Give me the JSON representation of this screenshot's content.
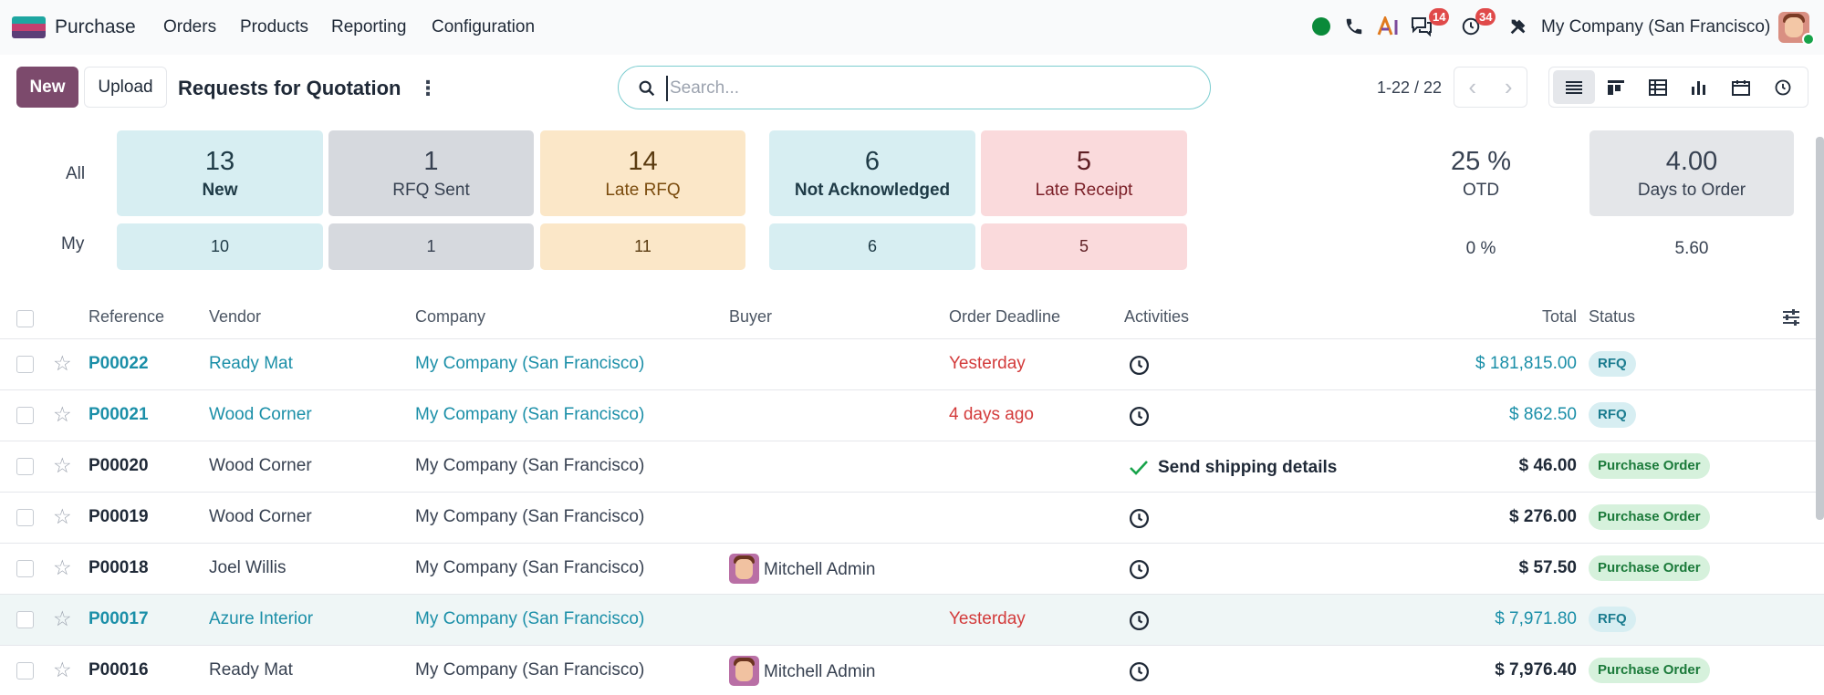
{
  "navbar": {
    "app_name": "Purchase",
    "menu": [
      "Orders",
      "Products",
      "Reporting",
      "Configuration"
    ],
    "badge_messages": "14",
    "badge_activities": "34",
    "company": "My Company (San Francisco)"
  },
  "control": {
    "new_label": "New",
    "upload_label": "Upload",
    "title": "Requests for Quotation",
    "search_placeholder": "Search...",
    "pager": "1-22 / 22"
  },
  "dashboard": {
    "all_label": "All",
    "my_label": "My",
    "tiles": [
      {
        "num": "13",
        "label": "New",
        "my": "10"
      },
      {
        "num": "1",
        "label": "RFQ Sent",
        "my": "1"
      },
      {
        "num": "14",
        "label": "Late RFQ",
        "my": "11"
      },
      {
        "num": "6",
        "label": "Not Acknowledged",
        "my": "6"
      },
      {
        "num": "5",
        "label": "Late Receipt",
        "my": "5"
      }
    ],
    "kpis": [
      {
        "num": "25 %",
        "label": "OTD",
        "my": "0 %"
      },
      {
        "num": "4.00",
        "label": "Days to Order",
        "my": "5.60"
      }
    ]
  },
  "table": {
    "headers": [
      "Reference",
      "Vendor",
      "Company",
      "Buyer",
      "Order Deadline",
      "Activities",
      "Total",
      "Status"
    ],
    "rows": [
      {
        "ref": "P00022",
        "vendor": "Ready Mat",
        "company": "My Company (San Francisco)",
        "buyer": "",
        "deadline": "Yesterday",
        "activity": "",
        "total": "$ 181,815.00",
        "status": "RFQ"
      },
      {
        "ref": "P00021",
        "vendor": "Wood Corner",
        "company": "My Company (San Francisco)",
        "buyer": "",
        "deadline": "4 days ago",
        "activity": "",
        "total": "$ 862.50",
        "status": "RFQ"
      },
      {
        "ref": "P00020",
        "vendor": "Wood Corner",
        "company": "My Company (San Francisco)",
        "buyer": "",
        "deadline": "",
        "activity": "Send shipping details",
        "total": "$ 46.00",
        "status": "Purchase Order"
      },
      {
        "ref": "P00019",
        "vendor": "Wood Corner",
        "company": "My Company (San Francisco)",
        "buyer": "",
        "deadline": "",
        "activity": "",
        "total": "$ 276.00",
        "status": "Purchase Order"
      },
      {
        "ref": "P00018",
        "vendor": "Joel Willis",
        "company": "My Company (San Francisco)",
        "buyer": "Mitchell Admin",
        "deadline": "",
        "activity": "",
        "total": "$ 57.50",
        "status": "Purchase Order"
      },
      {
        "ref": "P00017",
        "vendor": "Azure Interior",
        "company": "My Company (San Francisco)",
        "buyer": "",
        "deadline": "Yesterday",
        "activity": "",
        "total": "$ 7,971.80",
        "status": "RFQ"
      },
      {
        "ref": "P00016",
        "vendor": "Ready Mat",
        "company": "My Company (San Francisco)",
        "buyer": "Mitchell Admin",
        "deadline": "",
        "activity": "",
        "total": "$ 7,976.40",
        "status": "Purchase Order"
      }
    ]
  }
}
